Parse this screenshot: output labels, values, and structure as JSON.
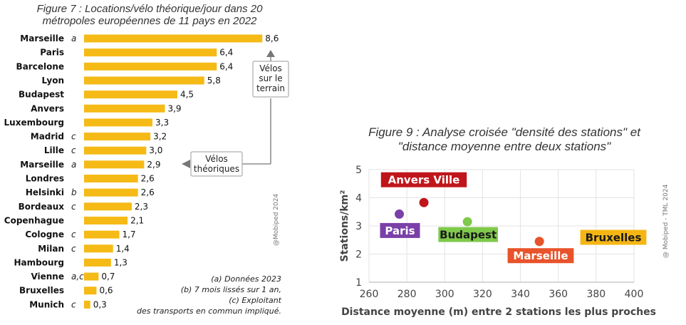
{
  "chart_data": [
    {
      "type": "bar",
      "title_lines": [
        "Figure 7 : Locations/vélo théorique/jour dans 20",
        "métropoles européennes de 11 pays en 2022"
      ],
      "categories": [
        "Marseille",
        "Paris",
        "Barcelone",
        "Lyon",
        "Budapest",
        "Anvers",
        "Luxembourg",
        "Madrid",
        "Lille",
        "Marseille",
        "Londres",
        "Helsinki",
        "Bordeaux",
        "Copenhague",
        "Cologne",
        "Milan",
        "Hambourg",
        "Vienne",
        "Bruxelles",
        "Munich"
      ],
      "notes": [
        "a",
        "",
        "",
        "",
        "",
        "",
        "",
        "c",
        "c",
        "a",
        "",
        "b",
        "c",
        "",
        "c",
        "c",
        "",
        "a,c",
        "",
        "c"
      ],
      "values": [
        8.6,
        6.4,
        6.4,
        5.8,
        4.5,
        3.9,
        3.3,
        3.2,
        3.0,
        2.9,
        2.6,
        2.6,
        2.3,
        2.1,
        1.7,
        1.4,
        1.3,
        0.7,
        0.6,
        0.3
      ],
      "value_labels": [
        "8,6",
        "6,4",
        "6,4",
        "5,8",
        "4,5",
        "3,9",
        "3,3",
        "3,2",
        "3,0",
        "2,9",
        "2,6",
        "2,6",
        "2,3",
        "2,1",
        "1,7",
        "1,4",
        "1,3",
        "0,7",
        "0,6",
        "0,3"
      ],
      "bar_color": "#F5BA16",
      "annotations": {
        "top_box_lines": [
          "Vélos",
          "sur le",
          "terrain"
        ],
        "bottom_box_lines": [
          "Vélos",
          "théoriques"
        ]
      },
      "credit": "@Mobiped 2024",
      "footnotes": [
        "(a) Données 2023",
        "(b) 7 mois lissés sur 1 an,",
        "(c) Exploitant",
        "des transports en commun impliqué."
      ]
    },
    {
      "type": "scatter",
      "title_lines": [
        "Figure 9 : Analyse croisée \"densité des stations\" et",
        "\"distance moyenne entre deux stations\""
      ],
      "xlabel": "Distance moyenne (m) entre 2 stations les plus proches",
      "ylabel": "Stations/km²",
      "xlim": [
        260,
        400
      ],
      "ylim": [
        1,
        5
      ],
      "x_ticks": [
        260,
        280,
        300,
        320,
        340,
        360,
        380,
        400
      ],
      "y_ticks": [
        1,
        2,
        3,
        4,
        5
      ],
      "grid": true,
      "points": [
        {
          "label": "Anvers Ville",
          "x": 289,
          "y": 3.83,
          "color": "#C0161B"
        },
        {
          "label": "Paris",
          "x": 276,
          "y": 3.42,
          "color": "#7B3FA8"
        },
        {
          "label": "Budapest",
          "x": 312,
          "y": 3.15,
          "color": "#7FC94B"
        },
        {
          "label": "Marseille",
          "x": 350,
          "y": 2.45,
          "color": "#E8532B"
        },
        {
          "label": "Bruxelles",
          "x": 389,
          "y": 2.57,
          "color": "#F5B614"
        }
      ],
      "credit": "@ Mobiped - TML 2024"
    }
  ]
}
